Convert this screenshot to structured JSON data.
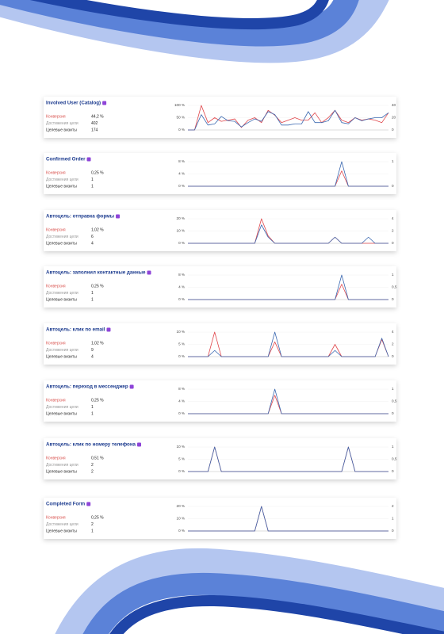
{
  "cards": [
    {
      "title": "Involved User (Catalog)",
      "metrics": [
        {
          "label": "Конверсия",
          "value": "44,2 %"
        },
        {
          "label": "Достижения цели",
          "value": "402"
        },
        {
          "label": "Целевые визиты",
          "value": "174"
        }
      ],
      "chart": {
        "type": "line",
        "ylim": [
          0,
          100
        ],
        "yticks": [
          {
            "value": 0,
            "label": "0 %"
          },
          {
            "value": 50,
            "label": "50 %"
          },
          {
            "value": 100,
            "label": "100 %"
          }
        ],
        "y2lim": [
          0,
          40
        ],
        "y2ticks": [
          0,
          20,
          40
        ],
        "grid": true,
        "series": [
          {
            "color": "#e0474c",
            "values": [
              0,
              0,
              100,
              30,
              50,
              35,
              40,
              45,
              10,
              40,
              50,
              30,
              80,
              60,
              30,
              40,
              50,
              40,
              40,
              70,
              30,
              50,
              80,
              40,
              30,
              50,
              40,
              45,
              40,
              30,
              70
            ]
          },
          {
            "color": "#3a68b0",
            "axis": "y2",
            "values": [
              0,
              0,
              25,
              8,
              10,
              22,
              15,
              14,
              5,
              12,
              18,
              14,
              30,
              25,
              8,
              8,
              10,
              10,
              30,
              12,
              12,
              15,
              32,
              12,
              10,
              20,
              15,
              18,
              20,
              20,
              28
            ]
          }
        ]
      }
    },
    {
      "title": "Confirmed Order",
      "metrics": [
        {
          "label": "Конверсия",
          "value": "0,25 %"
        },
        {
          "label": "Достижения цели",
          "value": "1"
        },
        {
          "label": "Целевые визиты",
          "value": "1"
        }
      ],
      "chart": {
        "type": "line",
        "ylim": [
          0,
          8
        ],
        "yticks": [
          {
            "value": 0,
            "label": "0 %"
          },
          {
            "value": 4,
            "label": "4 %"
          },
          {
            "value": 8,
            "label": "8 %"
          }
        ],
        "y2lim": [
          0,
          1
        ],
        "y2ticks": [
          0,
          1
        ],
        "grid": true,
        "series": [
          {
            "color": "#e0474c",
            "values": [
              0,
              0,
              0,
              0,
              0,
              0,
              0,
              0,
              0,
              0,
              0,
              0,
              0,
              0,
              0,
              0,
              0,
              0,
              0,
              0,
              0,
              0,
              0,
              5,
              0,
              0,
              0,
              0,
              0,
              0,
              0
            ]
          },
          {
            "color": "#3a68b0",
            "axis": "y2",
            "values": [
              0,
              0,
              0,
              0,
              0,
              0,
              0,
              0,
              0,
              0,
              0,
              0,
              0,
              0,
              0,
              0,
              0,
              0,
              0,
              0,
              0,
              0,
              0,
              1,
              0,
              0,
              0,
              0,
              0,
              0,
              0
            ]
          }
        ]
      }
    },
    {
      "title": "Автоцель: отправка формы",
      "metrics": [
        {
          "label": "Конверсия",
          "value": "1,02 %"
        },
        {
          "label": "Достижения цели",
          "value": "6"
        },
        {
          "label": "Целевые визиты",
          "value": "4"
        }
      ],
      "chart": {
        "type": "line",
        "ylim": [
          0,
          20
        ],
        "yticks": [
          {
            "value": 0,
            "label": "0 %"
          },
          {
            "value": 10,
            "label": "10 %"
          },
          {
            "value": 20,
            "label": "20 %"
          }
        ],
        "y2lim": [
          0,
          4
        ],
        "y2ticks": [
          0,
          2,
          4
        ],
        "grid": true,
        "series": [
          {
            "color": "#e0474c",
            "values": [
              0,
              0,
              0,
              0,
              0,
              0,
              0,
              0,
              0,
              0,
              0,
              20,
              6,
              0,
              0,
              0,
              0,
              0,
              0,
              0,
              0,
              0,
              5,
              0,
              0,
              0,
              0,
              0,
              0,
              0,
              0
            ]
          },
          {
            "color": "#3a68b0",
            "axis": "y2",
            "values": [
              0,
              0,
              0,
              0,
              0,
              0,
              0,
              0,
              0,
              0,
              0,
              3,
              1,
              0,
              0,
              0,
              0,
              0,
              0,
              0,
              0,
              0,
              1,
              0,
              0,
              0,
              0,
              1,
              0,
              0,
              0
            ]
          }
        ]
      }
    },
    {
      "title": "Автоцель: заполнил контактные данные",
      "metrics": [
        {
          "label": "Конверсия",
          "value": "0,25 %"
        },
        {
          "label": "Достижения цели",
          "value": "1"
        },
        {
          "label": "Целевые визиты",
          "value": "1"
        }
      ],
      "chart": {
        "type": "line",
        "ylim": [
          0,
          8
        ],
        "yticks": [
          {
            "value": 0,
            "label": "0 %"
          },
          {
            "value": 4,
            "label": "4 %"
          },
          {
            "value": 8,
            "label": "8 %"
          }
        ],
        "y2lim": [
          0,
          1
        ],
        "y2ticks": [
          0,
          {
            "value": 0.5,
            "label": "0,5"
          },
          1
        ],
        "grid": true,
        "series": [
          {
            "color": "#e0474c",
            "values": [
              0,
              0,
              0,
              0,
              0,
              0,
              0,
              0,
              0,
              0,
              0,
              0,
              0,
              0,
              0,
              0,
              0,
              0,
              0,
              0,
              0,
              0,
              0,
              5,
              0,
              0,
              0,
              0,
              0,
              0,
              0
            ]
          },
          {
            "color": "#3a68b0",
            "axis": "y2",
            "values": [
              0,
              0,
              0,
              0,
              0,
              0,
              0,
              0,
              0,
              0,
              0,
              0,
              0,
              0,
              0,
              0,
              0,
              0,
              0,
              0,
              0,
              0,
              0,
              1,
              0,
              0,
              0,
              0,
              0,
              0,
              0
            ]
          }
        ]
      }
    },
    {
      "title": "Автоцель: клик по email",
      "metrics": [
        {
          "label": "Конверсия",
          "value": "1,02 %"
        },
        {
          "label": "Достижения цели",
          "value": "9"
        },
        {
          "label": "Целевые визиты",
          "value": "4"
        }
      ],
      "chart": {
        "type": "line",
        "ylim": [
          0,
          10
        ],
        "yticks": [
          {
            "value": 0,
            "label": "0 %"
          },
          {
            "value": 5,
            "label": "5 %"
          },
          {
            "value": 10,
            "label": "10 %"
          }
        ],
        "y2lim": [
          0,
          4
        ],
        "y2ticks": [
          0,
          2,
          4
        ],
        "grid": true,
        "series": [
          {
            "color": "#e0474c",
            "values": [
              0,
              0,
              0,
              0,
              10,
              0,
              0,
              0,
              0,
              0,
              0,
              0,
              0,
              6,
              0,
              0,
              0,
              0,
              0,
              0,
              0,
              0,
              5,
              0,
              0,
              0,
              0,
              0,
              0,
              7,
              0
            ]
          },
          {
            "color": "#3a68b0",
            "axis": "y2",
            "values": [
              0,
              0,
              0,
              0,
              1,
              0,
              0,
              0,
              0,
              0,
              0,
              0,
              0,
              4,
              0,
              0,
              0,
              0,
              0,
              0,
              0,
              0,
              1,
              0,
              0,
              0,
              0,
              0,
              0,
              3,
              0
            ]
          }
        ]
      }
    },
    {
      "title": "Автоцель: переход в мессенджер",
      "metrics": [
        {
          "label": "Конверсия",
          "value": "0,25 %"
        },
        {
          "label": "Достижения цели",
          "value": "1"
        },
        {
          "label": "Целевые визиты",
          "value": "1"
        }
      ],
      "chart": {
        "type": "line",
        "ylim": [
          0,
          8
        ],
        "yticks": [
          {
            "value": 0,
            "label": "0 %"
          },
          {
            "value": 4,
            "label": "4 %"
          },
          {
            "value": 8,
            "label": "8 %"
          }
        ],
        "y2lim": [
          0,
          1
        ],
        "y2ticks": [
          0,
          {
            "value": 0.5,
            "label": "0,5"
          },
          1
        ],
        "grid": true,
        "series": [
          {
            "color": "#e0474c",
            "values": [
              0,
              0,
              0,
              0,
              0,
              0,
              0,
              0,
              0,
              0,
              0,
              0,
              0,
              6,
              0,
              0,
              0,
              0,
              0,
              0,
              0,
              0,
              0,
              0,
              0,
              0,
              0,
              0,
              0,
              0,
              0
            ]
          },
          {
            "color": "#3a68b0",
            "axis": "y2",
            "values": [
              0,
              0,
              0,
              0,
              0,
              0,
              0,
              0,
              0,
              0,
              0,
              0,
              0,
              1,
              0,
              0,
              0,
              0,
              0,
              0,
              0,
              0,
              0,
              0,
              0,
              0,
              0,
              0,
              0,
              0,
              0
            ]
          }
        ]
      }
    },
    {
      "title": "Автоцель: клик по номеру телефона",
      "metrics": [
        {
          "label": "Конверсия",
          "value": "0,51 %"
        },
        {
          "label": "Достижения цели",
          "value": "2"
        },
        {
          "label": "Целевые визиты",
          "value": "2"
        }
      ],
      "chart": {
        "type": "line",
        "ylim": [
          0,
          10
        ],
        "yticks": [
          {
            "value": 0,
            "label": "0 %"
          },
          {
            "value": 5,
            "label": "5 %"
          },
          {
            "value": 10,
            "label": "10 %"
          }
        ],
        "y2lim": [
          0,
          1
        ],
        "y2ticks": [
          0,
          {
            "value": 0.5,
            "label": "0,5"
          },
          1
        ],
        "grid": true,
        "series": [
          {
            "color": "#e0474c",
            "values": [
              0,
              0,
              0,
              0,
              10,
              0,
              0,
              0,
              0,
              0,
              0,
              0,
              0,
              0,
              0,
              0,
              0,
              0,
              0,
              0,
              0,
              0,
              0,
              0,
              10,
              0,
              0,
              0,
              0,
              0,
              0
            ]
          },
          {
            "color": "#3a68b0",
            "axis": "y2",
            "values": [
              0,
              0,
              0,
              0,
              1,
              0,
              0,
              0,
              0,
              0,
              0,
              0,
              0,
              0,
              0,
              0,
              0,
              0,
              0,
              0,
              0,
              0,
              0,
              0,
              1,
              0,
              0,
              0,
              0,
              0,
              0
            ]
          }
        ]
      }
    },
    {
      "title": "Completed Form",
      "metrics": [
        {
          "label": "Конверсия",
          "value": "0,25 %"
        },
        {
          "label": "Достижения цели",
          "value": "2"
        },
        {
          "label": "Целевые визиты",
          "value": "1"
        }
      ],
      "chart": {
        "type": "line",
        "ylim": [
          0,
          20
        ],
        "yticks": [
          {
            "value": 0,
            "label": "0 %"
          },
          {
            "value": 10,
            "label": "10 %"
          },
          {
            "value": 20,
            "label": "20 %"
          }
        ],
        "y2lim": [
          0,
          2
        ],
        "y2ticks": [
          0,
          1,
          2
        ],
        "grid": true,
        "series": [
          {
            "color": "#e0474c",
            "values": [
              0,
              0,
              0,
              0,
              0,
              0,
              0,
              0,
              0,
              0,
              0,
              20,
              0,
              0,
              0,
              0,
              0,
              0,
              0,
              0,
              0,
              0,
              0,
              0,
              0,
              0,
              0,
              0,
              0,
              0,
              0
            ]
          },
          {
            "color": "#3a68b0",
            "axis": "y2",
            "values": [
              0,
              0,
              0,
              0,
              0,
              0,
              0,
              0,
              0,
              0,
              0,
              2,
              0,
              0,
              0,
              0,
              0,
              0,
              0,
              0,
              0,
              0,
              0,
              0,
              0,
              0,
              0,
              0,
              0,
              0,
              0
            ]
          }
        ]
      }
    }
  ]
}
